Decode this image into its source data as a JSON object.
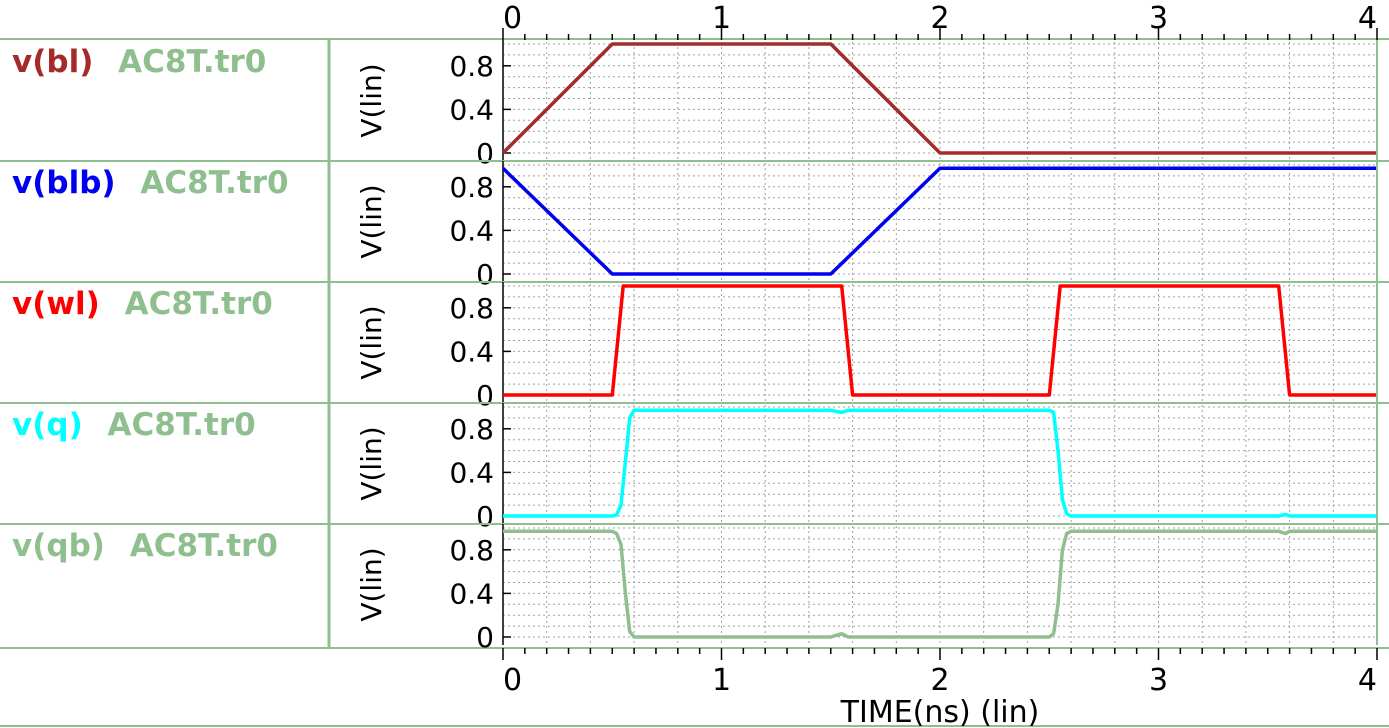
{
  "colors": {
    "background": "#ffffff",
    "frame": "#8fbf8f",
    "grid": "#a0a0a0",
    "file_label": "#8fbf8f",
    "text": "#000000"
  },
  "legend": [
    {
      "signal": "v(bl)",
      "file": "AC8T.tr0",
      "color": "#a52a2a"
    },
    {
      "signal": "v(blb)",
      "file": "AC8T.tr0",
      "color": "#0000ee"
    },
    {
      "signal": "v(wl)",
      "file": "AC8T.tr0",
      "color": "#ff0000"
    },
    {
      "signal": "v(q)",
      "file": "AC8T.tr0",
      "color": "#00ffff"
    },
    {
      "signal": "v(qb)",
      "file": "AC8T.tr0",
      "color": "#8fbf8f"
    }
  ],
  "chart_data": {
    "type": "line",
    "layout": "stacked-panels",
    "xlabel": "TIME(ns) (lin)",
    "xlim": [
      0,
      4
    ],
    "x_ticks": [
      "0",
      "1",
      "2",
      "3",
      "4"
    ],
    "grid": true,
    "panels": [
      {
        "series_name": "v(bl)",
        "file": "AC8T.tr0",
        "color": "#a52a2a",
        "ylabel": "V(lin)",
        "ylim": [
          0,
          1.0
        ],
        "y_ticks": [
          "0",
          "0.4",
          "0.8"
        ],
        "x": [
          0,
          0.5,
          1.5,
          2.0,
          4.0
        ],
        "y": [
          0,
          1.0,
          1.0,
          0,
          0
        ]
      },
      {
        "series_name": "v(blb)",
        "file": "AC8T.tr0",
        "color": "#0000ee",
        "ylabel": "V(lin)",
        "ylim": [
          0,
          1.0
        ],
        "y_ticks": [
          "0",
          "0.4",
          "0.8"
        ],
        "x": [
          0,
          0.5,
          1.5,
          2.0,
          4.0
        ],
        "y": [
          0.97,
          0,
          0,
          0.97,
          0.97
        ]
      },
      {
        "series_name": "v(wl)",
        "file": "AC8T.tr0",
        "color": "#ff0000",
        "ylabel": "V(lin)",
        "ylim": [
          0,
          1.0
        ],
        "y_ticks": [
          "0",
          "0.4",
          "0.8"
        ],
        "x": [
          0,
          0.5,
          0.55,
          1.55,
          1.6,
          2.5,
          2.55,
          3.55,
          3.6,
          4.0
        ],
        "y": [
          0,
          0,
          1.0,
          1.0,
          0,
          0,
          1.0,
          1.0,
          0,
          0
        ]
      },
      {
        "series_name": "v(q)",
        "file": "AC8T.tr0",
        "color": "#00ffff",
        "ylabel": "V(lin)",
        "ylim": [
          0,
          1.0
        ],
        "y_ticks": [
          "0",
          "0.4",
          "0.8"
        ],
        "x": [
          0,
          0.5,
          0.52,
          0.54,
          0.56,
          0.58,
          0.6,
          1.5,
          1.55,
          1.58,
          1.6,
          2.5,
          2.52,
          2.54,
          2.56,
          2.58,
          2.6,
          3.55,
          3.58,
          3.6,
          4.0
        ],
        "y": [
          0,
          0,
          0.01,
          0.1,
          0.5,
          0.9,
          0.97,
          0.97,
          0.95,
          0.97,
          0.97,
          0.97,
          0.95,
          0.6,
          0.15,
          0.02,
          0,
          0,
          0.015,
          0,
          0
        ]
      },
      {
        "series_name": "v(qb)",
        "file": "AC8T.tr0",
        "color": "#8fbf8f",
        "ylabel": "V(lin)",
        "ylim": [
          0,
          1.0
        ],
        "y_ticks": [
          "0",
          "0.4",
          "0.8"
        ],
        "x": [
          0,
          0.5,
          0.52,
          0.54,
          0.56,
          0.58,
          0.6,
          1.5,
          1.55,
          1.58,
          1.6,
          2.5,
          2.52,
          2.54,
          2.56,
          2.58,
          2.6,
          3.55,
          3.58,
          3.6,
          4.0
        ],
        "y": [
          0.97,
          0.97,
          0.95,
          0.85,
          0.4,
          0.05,
          0,
          0,
          0.03,
          0,
          0,
          0,
          0.03,
          0.3,
          0.8,
          0.95,
          0.97,
          0.97,
          0.95,
          0.97,
          0.97
        ]
      }
    ]
  }
}
